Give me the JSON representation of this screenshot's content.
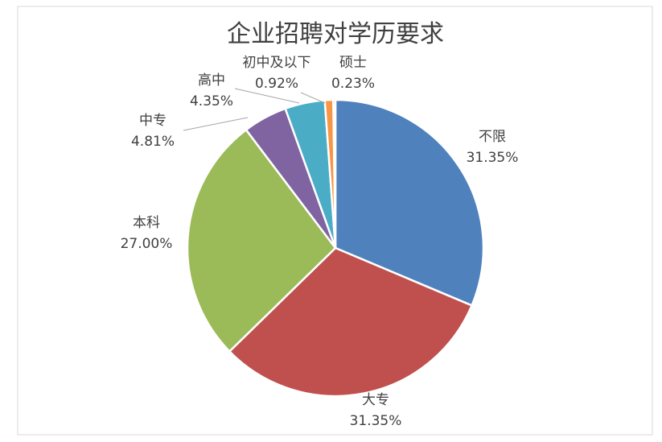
{
  "chart_data": {
    "type": "pie",
    "title": "企业招聘对学历要求",
    "categories": [
      "不限",
      "大专",
      "本科",
      "中专",
      "高中",
      "初中及以下",
      "硕士"
    ],
    "values": [
      31.35,
      31.35,
      27.0,
      4.81,
      4.35,
      0.92,
      0.23
    ],
    "value_labels": [
      "31.35%",
      "31.35%",
      "27.00%",
      "4.81%",
      "4.35%",
      "0.92%",
      "0.23%"
    ],
    "colors": [
      "#4f81bd",
      "#c0504d",
      "#9bbb59",
      "#8064a2",
      "#4bacc6",
      "#f79646",
      "#2c4d75"
    ]
  }
}
